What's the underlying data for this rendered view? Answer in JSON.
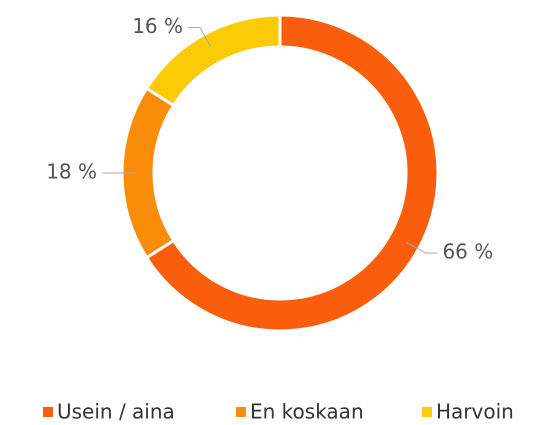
{
  "chart_data": {
    "type": "donut",
    "categories": [
      "Usein / aina",
      "En koskaan",
      "Harvoin"
    ],
    "values": [
      66,
      18,
      16
    ],
    "value_labels": [
      "66 %",
      "18 %",
      "16 %"
    ],
    "colors": [
      "#fa5e0c",
      "#f98d0a",
      "#fccb05"
    ],
    "legend": "bottom"
  }
}
